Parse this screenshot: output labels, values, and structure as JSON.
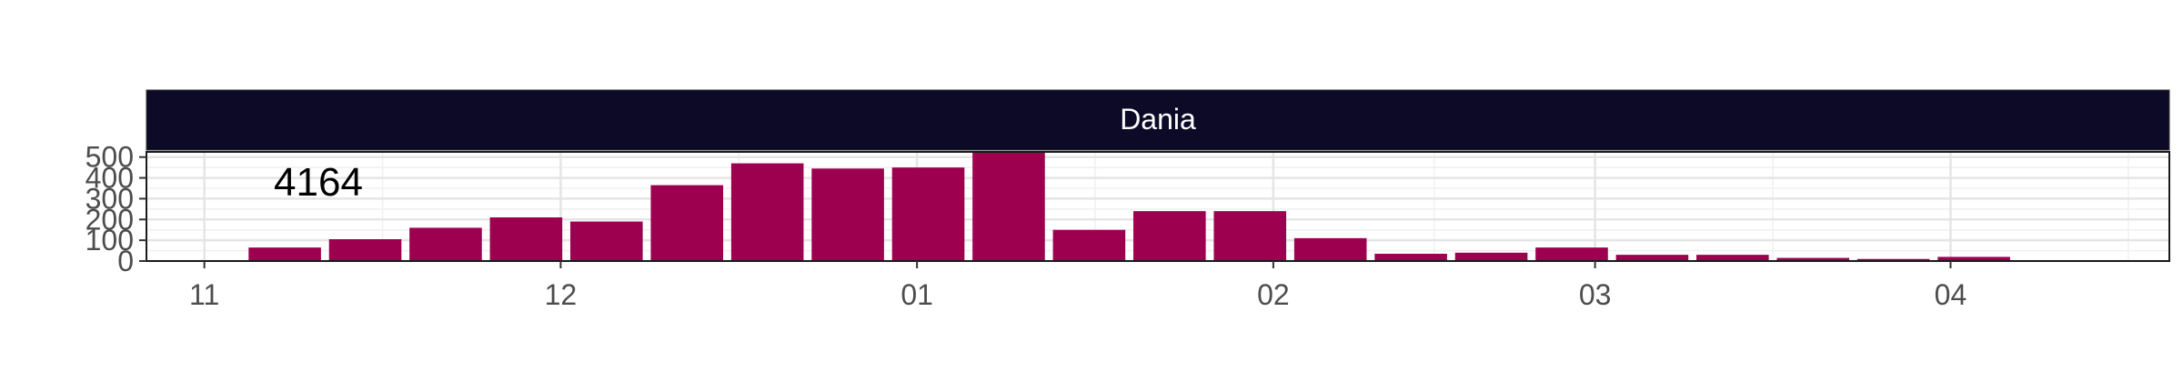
{
  "chart_data": {
    "type": "bar",
    "facet_label": "Dania",
    "annotation": "4164",
    "bar_color": "#9e0050",
    "strip_color": "#0d0a28",
    "x_ticks": [
      {
        "label": "11",
        "week": 0
      },
      {
        "label": "12",
        "week": 4.43
      },
      {
        "label": "01",
        "week": 8.86
      },
      {
        "label": "02",
        "week": 13.29
      },
      {
        "label": "03",
        "week": 17.29
      },
      {
        "label": "04",
        "week": 21.71
      }
    ],
    "x_range": [
      -0.72,
      24.43
    ],
    "weeks": [
      1,
      2,
      3,
      4,
      5,
      6,
      7,
      8,
      9,
      10,
      11,
      12,
      13,
      14,
      15,
      16,
      17,
      18,
      19,
      20,
      21,
      22,
      23
    ],
    "values": [
      65,
      105,
      160,
      210,
      190,
      365,
      470,
      445,
      450,
      525,
      150,
      240,
      240,
      110,
      35,
      40,
      65,
      30,
      30,
      15,
      10,
      20,
      0
    ],
    "y_ticks": [
      0,
      100,
      200,
      300,
      400,
      500
    ],
    "ylim": [
      0,
      525
    ],
    "xlabel": "",
    "ylabel": "",
    "grid": true
  }
}
